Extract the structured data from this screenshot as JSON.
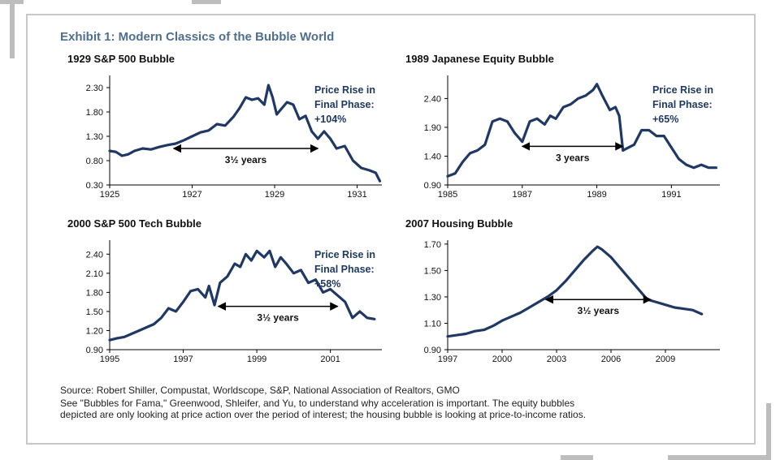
{
  "exhibit_title": "Exhibit 1: Modern Classics of the Bubble World",
  "colors": {
    "line": "#1f3864",
    "title": "#4f6f8f",
    "frame": "#c8c8c8"
  },
  "footer": {
    "source": "Source: Robert Shiller, Compustat, Worldscope, S&P, National Association of Realtors, GMO",
    "note_line1": "See \"Bubbles for Fama,\" Greenwood, Shleifer, and Yu, to understand why acceleration is important. The equity bubbles",
    "note_line2": "depicted are only looking at price action over the period of interest; the housing bubble is looking at price-to-income ratios."
  },
  "chart_data": [
    {
      "type": "line",
      "title": "1929 S&P 500 Bubble",
      "xlim": [
        1925,
        1931.6
      ],
      "ylim": [
        0.3,
        2.55
      ],
      "x_ticks": [
        1925,
        1927,
        1929,
        1931
      ],
      "x_tick_labels": [
        "1925",
        "1927",
        "1929",
        "1931"
      ],
      "y_ticks": [
        0.3,
        0.8,
        1.3,
        1.8,
        2.3
      ],
      "y_tick_labels": [
        "0.30",
        "0.80",
        "1.30",
        "1.80",
        "2.30"
      ],
      "annotation_lines": [
        "Price Rise in",
        "Final Phase:",
        "+104%"
      ],
      "span": {
        "from": 1926.55,
        "to": 1930.05,
        "y": 1.05,
        "label": "3½ years"
      },
      "series": [
        {
          "x": [
            1925.0,
            1925.15,
            1925.3,
            1925.45,
            1925.6,
            1925.8,
            1926.0,
            1926.2,
            1926.4,
            1926.6,
            1926.8,
            1927.0,
            1927.2,
            1927.4,
            1927.6,
            1927.8,
            1928.0,
            1928.15,
            1928.3,
            1928.45,
            1928.6,
            1928.75,
            1928.85,
            1928.95,
            1929.05,
            1929.15,
            1929.3,
            1929.45,
            1929.6,
            1929.75,
            1929.9,
            1930.05,
            1930.2,
            1930.35,
            1930.5,
            1930.7,
            1930.9,
            1931.1,
            1931.3,
            1931.45,
            1931.55
          ],
          "y": [
            1.0,
            0.98,
            0.9,
            0.93,
            1.0,
            1.05,
            1.03,
            1.08,
            1.12,
            1.15,
            1.22,
            1.3,
            1.38,
            1.42,
            1.55,
            1.52,
            1.7,
            1.88,
            2.1,
            2.05,
            2.08,
            1.95,
            2.35,
            2.1,
            1.75,
            1.85,
            2.0,
            1.95,
            1.65,
            1.72,
            1.4,
            1.25,
            1.4,
            1.25,
            1.05,
            1.1,
            0.8,
            0.65,
            0.6,
            0.55,
            0.38
          ]
        }
      ]
    },
    {
      "type": "line",
      "title": "1989 Japanese Equity Bubble",
      "xlim": [
        1985,
        1992.3
      ],
      "ylim": [
        0.9,
        2.8
      ],
      "x_ticks": [
        1985,
        1987,
        1989,
        1991
      ],
      "x_tick_labels": [
        "1985",
        "1987",
        "1989",
        "1991"
      ],
      "y_ticks": [
        0.9,
        1.4,
        1.9,
        2.4
      ],
      "y_tick_labels": [
        "0.90",
        "1.40",
        "1.90",
        "2.40"
      ],
      "annotation_lines": [
        "Price Rise in",
        "Final Phase:",
        "+65%"
      ],
      "span": {
        "from": 1987.0,
        "to": 1989.7,
        "y": 1.57,
        "label": "3 years"
      },
      "series": [
        {
          "x": [
            1985.0,
            1985.2,
            1985.4,
            1985.6,
            1985.8,
            1986.0,
            1986.2,
            1986.4,
            1986.6,
            1986.8,
            1987.0,
            1987.2,
            1987.4,
            1987.6,
            1987.75,
            1987.9,
            1988.1,
            1988.3,
            1988.5,
            1988.7,
            1988.9,
            1989.0,
            1989.15,
            1989.35,
            1989.5,
            1989.6,
            1989.7,
            1989.85,
            1990.0,
            1990.2,
            1990.4,
            1990.6,
            1990.8,
            1991.0,
            1991.2,
            1991.4,
            1991.6,
            1991.8,
            1992.0,
            1992.2
          ],
          "y": [
            1.05,
            1.1,
            1.3,
            1.45,
            1.5,
            1.6,
            2.0,
            2.05,
            2.0,
            1.8,
            1.65,
            2.0,
            2.05,
            1.95,
            2.1,
            2.05,
            2.25,
            2.3,
            2.4,
            2.45,
            2.55,
            2.65,
            2.45,
            2.2,
            2.25,
            2.1,
            1.5,
            1.55,
            1.6,
            1.85,
            1.85,
            1.75,
            1.75,
            1.55,
            1.35,
            1.25,
            1.2,
            1.25,
            1.2,
            1.2
          ]
        }
      ]
    },
    {
      "type": "line",
      "title": "2000 S&P 500 Tech Bubble",
      "xlim": [
        1995,
        2002.4
      ],
      "ylim": [
        0.9,
        2.62
      ],
      "x_ticks": [
        1995,
        1997,
        1999,
        2001
      ],
      "x_tick_labels": [
        "1995",
        "1997",
        "1999",
        "2001"
      ],
      "y_ticks": [
        0.9,
        1.2,
        1.5,
        1.8,
        2.1,
        2.4
      ],
      "y_tick_labels": [
        "0.90",
        "1.20",
        "1.50",
        "1.80",
        "2.10",
        "2.40"
      ],
      "annotation_lines": [
        "Price Rise in",
        "Final Phase:",
        "+58%"
      ],
      "span": {
        "from": 1997.95,
        "to": 2001.2,
        "y": 1.58,
        "label": "3½ years"
      },
      "series": [
        {
          "x": [
            1995.0,
            1995.2,
            1995.4,
            1995.6,
            1995.8,
            1996.0,
            1996.2,
            1996.4,
            1996.6,
            1996.8,
            1997.0,
            1997.2,
            1997.4,
            1997.6,
            1997.7,
            1997.85,
            1998.0,
            1998.2,
            1998.4,
            1998.55,
            1998.7,
            1998.85,
            1999.0,
            1999.2,
            1999.35,
            1999.5,
            1999.65,
            1999.8,
            2000.0,
            2000.2,
            2000.4,
            2000.6,
            2000.8,
            2001.0,
            2001.2,
            2001.4,
            2001.6,
            2001.8,
            2002.0,
            2002.2
          ],
          "y": [
            1.05,
            1.08,
            1.1,
            1.15,
            1.2,
            1.25,
            1.3,
            1.4,
            1.55,
            1.5,
            1.65,
            1.82,
            1.85,
            1.72,
            1.9,
            1.6,
            1.95,
            2.05,
            2.25,
            2.2,
            2.4,
            2.3,
            2.45,
            2.35,
            2.45,
            2.2,
            2.35,
            2.25,
            2.1,
            2.15,
            1.95,
            2.0,
            1.8,
            1.85,
            1.75,
            1.65,
            1.4,
            1.5,
            1.4,
            1.38
          ]
        }
      ]
    },
    {
      "type": "line",
      "title": "2007 Housing Bubble",
      "xlim": [
        1997,
        2012
      ],
      "ylim": [
        0.9,
        1.73
      ],
      "x_ticks": [
        1997,
        2000,
        2003,
        2006,
        2009
      ],
      "x_tick_labels": [
        "1997",
        "2000",
        "2003",
        "2006",
        "2009"
      ],
      "y_ticks": [
        0.9,
        1.1,
        1.3,
        1.5,
        1.7
      ],
      "y_tick_labels": [
        "0.90",
        "1.10",
        "1.30",
        "1.50",
        "1.70"
      ],
      "annotation_lines": [],
      "span": {
        "from": 2002.4,
        "to": 2008.2,
        "y": 1.28,
        "label": "3½ years"
      },
      "series": [
        {
          "x": [
            1997.0,
            1997.5,
            1998.0,
            1998.5,
            1999.0,
            1999.5,
            2000.0,
            2000.5,
            2001.0,
            2001.5,
            2002.0,
            2002.5,
            2003.0,
            2003.5,
            2004.0,
            2004.5,
            2005.0,
            2005.25,
            2005.5,
            2006.0,
            2006.5,
            2007.0,
            2007.5,
            2008.0,
            2008.5,
            2009.0,
            2009.5,
            2010.0,
            2010.5,
            2011.0
          ],
          "y": [
            1.0,
            1.01,
            1.02,
            1.04,
            1.05,
            1.08,
            1.12,
            1.15,
            1.18,
            1.22,
            1.26,
            1.3,
            1.35,
            1.42,
            1.5,
            1.58,
            1.65,
            1.68,
            1.66,
            1.6,
            1.52,
            1.44,
            1.36,
            1.28,
            1.26,
            1.24,
            1.22,
            1.21,
            1.2,
            1.17
          ]
        }
      ]
    }
  ]
}
